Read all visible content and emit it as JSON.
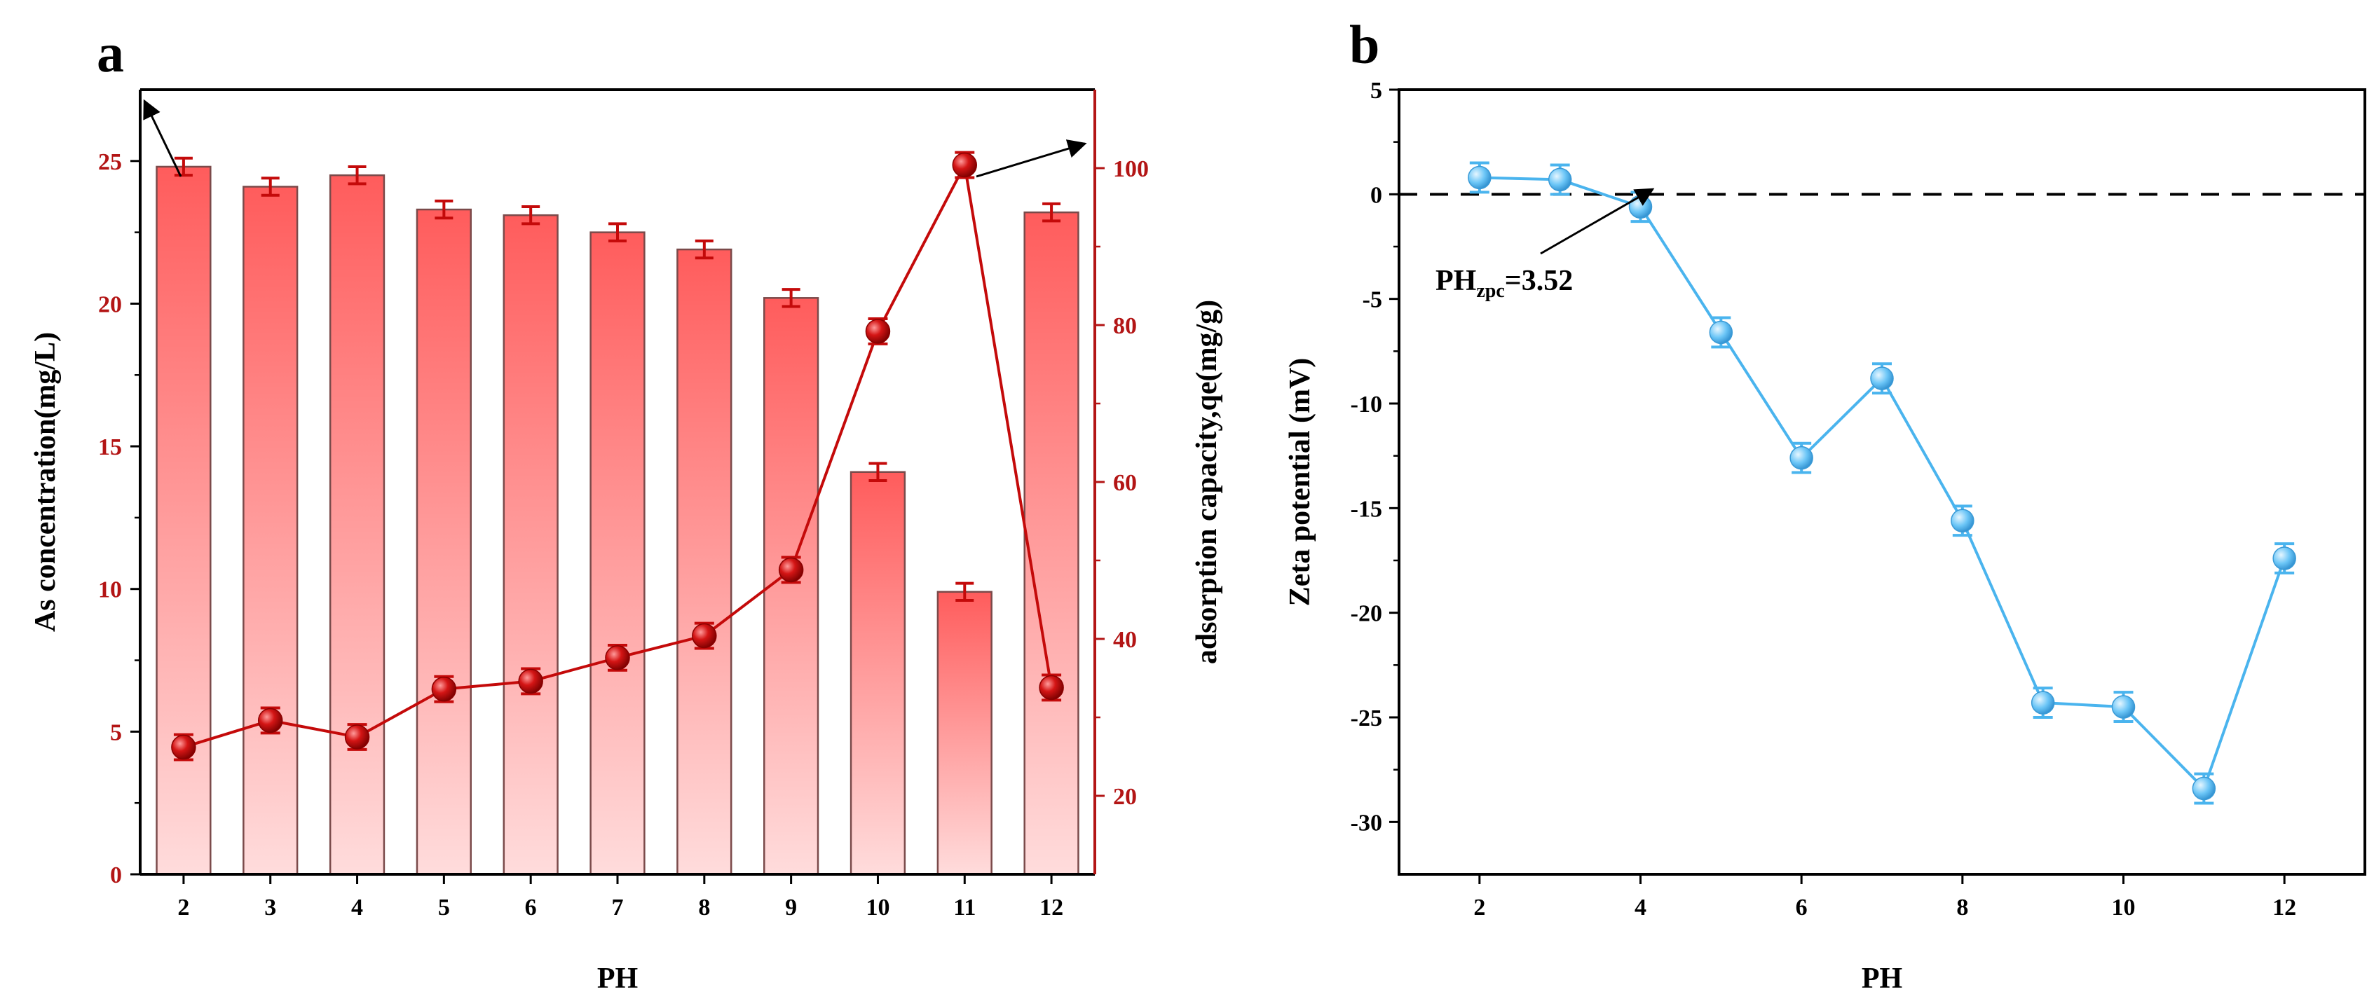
{
  "colors": {
    "bar_top": "#ff5c5c",
    "bar_bottom": "#ffdcdc",
    "bar_stroke": "#7a4a4a",
    "red_series": "#c40a0a",
    "red_axis": "#b31515",
    "blue_series": "#4ab4ee",
    "blue_marker": "#65c2f5",
    "axis": "#000000"
  },
  "chart_data": [
    {
      "panel": "a",
      "type": "bar+line (dual y-axis)",
      "xlabel": "PH",
      "categories": [
        2,
        3,
        4,
        5,
        6,
        7,
        8,
        9,
        10,
        11,
        12
      ],
      "left_axis": {
        "label": "As concentration(mg/L)",
        "ylim": [
          0,
          27.5
        ],
        "ticks": [
          0,
          5,
          10,
          15,
          20,
          25
        ]
      },
      "right_axis": {
        "label": "adsorption capacity,qe(mg/g)",
        "ylim": [
          10,
          110
        ],
        "ticks": [
          20,
          40,
          60,
          80,
          100
        ]
      },
      "series": [
        {
          "name": "As concentration",
          "kind": "bar",
          "axis": "left",
          "values": [
            24.8,
            24.1,
            24.5,
            23.3,
            23.1,
            22.5,
            21.9,
            20.2,
            14.1,
            9.9,
            23.2
          ],
          "errors": [
            0.3,
            0.3,
            0.3,
            0.3,
            0.3,
            0.3,
            0.3,
            0.3,
            0.3,
            0.3,
            0.3
          ]
        },
        {
          "name": "adsorption capacity qe",
          "kind": "line",
          "axis": "right",
          "values": [
            26.2,
            29.6,
            27.5,
            33.6,
            34.6,
            37.6,
            40.4,
            48.8,
            79.2,
            100.4,
            33.8
          ],
          "errors": [
            1.6,
            1.6,
            1.6,
            1.6,
            1.6,
            1.6,
            1.6,
            1.6,
            1.6,
            1.6,
            1.6
          ]
        }
      ]
    },
    {
      "panel": "b",
      "type": "line",
      "xlabel": "PH",
      "ylabel": "Zeta potential (mV)",
      "xlim": [
        1,
        13
      ],
      "ylim": [
        -32.5,
        5
      ],
      "xticks": [
        2,
        4,
        6,
        8,
        10,
        12
      ],
      "yticks": [
        5,
        0,
        -5,
        -10,
        -15,
        -20,
        -25,
        -30
      ],
      "x": [
        2,
        3,
        4,
        5,
        6,
        7,
        8,
        9,
        10,
        11,
        12
      ],
      "values": [
        0.8,
        0.7,
        -0.6,
        -6.6,
        -12.6,
        -8.8,
        -15.6,
        -24.3,
        -24.5,
        -28.4,
        -17.4
      ],
      "errors": [
        0.7,
        0.7,
        0.7,
        0.7,
        0.7,
        0.7,
        0.7,
        0.7,
        0.7,
        0.7,
        0.7
      ],
      "reference_line": 0,
      "annotation": {
        "main": "PH",
        "sub": "zpc",
        "value": "=3.52"
      }
    }
  ]
}
